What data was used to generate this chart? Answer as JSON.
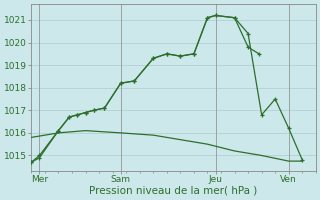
{
  "xlabel": "Pression niveau de la mer( hPa )",
  "bg_color": "#cce8ea",
  "grid_color": "#aacccc",
  "line_color": "#2d6e2d",
  "ylim": [
    1014.3,
    1021.7
  ],
  "yticks": [
    1015,
    1016,
    1017,
    1018,
    1019,
    1020,
    1021
  ],
  "xlim": [
    0,
    10.5
  ],
  "day_labels": [
    "Mer",
    "Sam",
    "Jeu",
    "Ven"
  ],
  "day_positions": [
    0.3,
    3.3,
    6.8,
    9.5
  ],
  "vline_positions": [
    0.3,
    3.3,
    6.8,
    9.5
  ],
  "line1_x": [
    0.0,
    0.3,
    1.0,
    1.4,
    1.7,
    2.0,
    2.3,
    2.7,
    3.3,
    3.8,
    4.5,
    5.0,
    5.5,
    6.0,
    6.5,
    6.8,
    7.5,
    8.0,
    8.4
  ],
  "line1_y": [
    1014.7,
    1014.9,
    1016.1,
    1016.7,
    1016.8,
    1016.9,
    1017.0,
    1017.1,
    1018.2,
    1018.3,
    1019.3,
    1019.5,
    1019.4,
    1019.5,
    1021.1,
    1021.2,
    1021.1,
    1019.8,
    1019.5
  ],
  "line2_x": [
    0.0,
    0.3,
    1.0,
    1.4,
    1.7,
    2.0,
    2.3,
    2.7,
    3.3,
    3.8,
    4.5,
    5.0,
    5.5,
    6.0,
    6.5,
    6.8,
    7.5,
    8.0,
    8.5,
    9.0,
    9.5,
    10.0
  ],
  "line2_y": [
    1014.7,
    1015.0,
    1016.1,
    1016.7,
    1016.8,
    1016.9,
    1017.0,
    1017.1,
    1018.2,
    1018.3,
    1019.3,
    1019.5,
    1019.4,
    1019.5,
    1021.1,
    1021.2,
    1021.1,
    1020.4,
    1016.8,
    1017.5,
    1016.2,
    1014.8
  ],
  "line3_x": [
    0.0,
    1.0,
    2.0,
    3.3,
    4.5,
    5.5,
    6.5,
    7.5,
    8.5,
    9.5,
    10.0
  ],
  "line3_y": [
    1015.8,
    1016.0,
    1016.1,
    1016.0,
    1015.9,
    1015.7,
    1015.5,
    1015.2,
    1015.0,
    1014.75,
    1014.75
  ]
}
